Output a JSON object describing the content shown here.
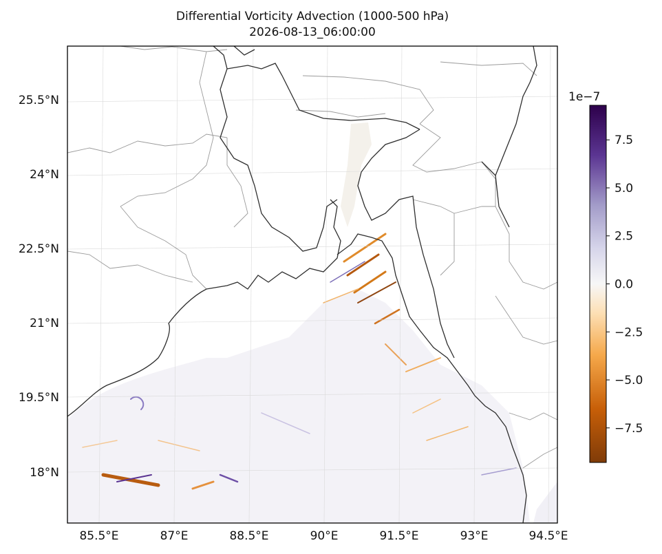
{
  "title": "Differential Vorticity Advection (1000-500 hPa)",
  "subtitle": "2026-08-13_06:00:00",
  "map": {
    "type": "map",
    "lat_labels": [
      "25.5°N",
      "24°N",
      "22.5°N",
      "21°N",
      "19.5°N",
      "18°N"
    ],
    "lon_labels": [
      "85.5°E",
      "87°E",
      "88.5°E",
      "90°E",
      "91.5°E",
      "93°E",
      "94.5°E"
    ],
    "colormap": "PuOr (orange negative, purple positive)"
  },
  "colorbar": {
    "exponent": "1e−7",
    "ticks": [
      "7.5",
      "5.0",
      "2.5",
      "0.0",
      "−2.5",
      "−5.0",
      "−7.5"
    ],
    "tick_values": [
      7.5,
      5.0,
      2.5,
      0.0,
      -2.5,
      -5.0,
      -7.5
    ],
    "range": [
      -9.3,
      9.3
    ],
    "colors": {
      "max": "#2d004b",
      "mid": "#f7f7f7",
      "min": "#7f3b08"
    }
  }
}
